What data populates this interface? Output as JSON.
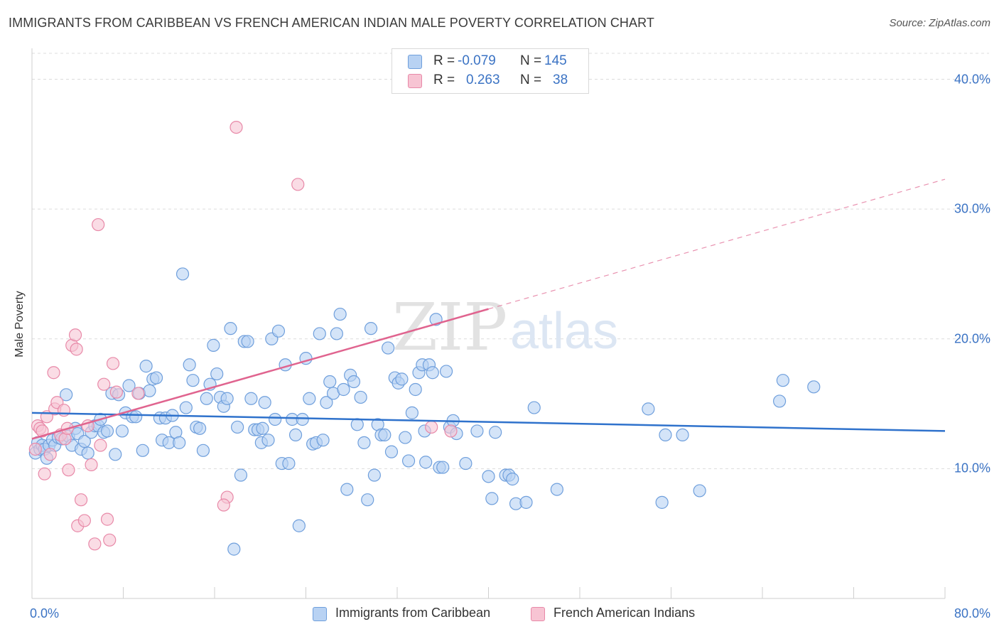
{
  "title": "IMMIGRANTS FROM CARIBBEAN VS FRENCH AMERICAN INDIAN MALE POVERTY CORRELATION CHART",
  "source": "Source: ZipAtlas.com",
  "watermark": {
    "zip": "ZIP",
    "atlas": "atlas"
  },
  "colors": {
    "blue_fill": "#b8d2f3",
    "blue_stroke": "#6f9fdc",
    "blue_line": "#2f72cc",
    "pink_fill": "#f7c4d3",
    "pink_stroke": "#e889a8",
    "pink_line": "#e0648f",
    "tick_text": "#3b73c4",
    "grid": "#dcdcdc"
  },
  "legend": {
    "rows": [
      {
        "r_label": "R =",
        "r_value": "-0.079",
        "n_label": "N =",
        "n_value": "145"
      },
      {
        "r_label": "R =",
        "r_value": "0.263",
        "n_label": "N =",
        "n_value": "38"
      }
    ]
  },
  "bottom_legend": [
    "Immigrants from Caribbean",
    "French American Indians"
  ],
  "chart_data": {
    "type": "scatter",
    "title": "IMMIGRANTS FROM CARIBBEAN VS FRENCH AMERICAN INDIAN MALE POVERTY CORRELATION CHART",
    "xlabel": "",
    "ylabel": "Male Poverty",
    "xlim": [
      0,
      80
    ],
    "ylim": [
      0,
      42
    ],
    "x_ticks": [
      "0.0%",
      "80.0%"
    ],
    "y_ticks": [
      {
        "value": 10,
        "label": "10.0%"
      },
      {
        "value": 20,
        "label": "20.0%"
      },
      {
        "value": 30,
        "label": "30.0%"
      },
      {
        "value": 40,
        "label": "40.0%"
      }
    ],
    "grid": "horizontal dashed",
    "legend_position": "top-center",
    "series": [
      {
        "name": "Immigrants from Caribbean",
        "r": -0.079,
        "n": 145,
        "trend": {
          "x": [
            0,
            80
          ],
          "y": [
            14.3,
            12.9
          ],
          "dashed_extension": false
        },
        "points": [
          [
            0.3,
            11.2
          ],
          [
            0.5,
            12.0
          ],
          [
            0.7,
            11.5
          ],
          [
            0.9,
            11.8
          ],
          [
            1.1,
            11.5
          ],
          [
            1.3,
            10.8
          ],
          [
            1.5,
            11.8
          ],
          [
            1.8,
            12.2
          ],
          [
            2.0,
            11.8
          ],
          [
            2.3,
            12.4
          ],
          [
            2.6,
            12.3
          ],
          [
            3.0,
            15.7
          ],
          [
            3.2,
            12.5
          ],
          [
            3.5,
            11.8
          ],
          [
            3.8,
            13.1
          ],
          [
            4.0,
            12.7
          ],
          [
            4.3,
            11.5
          ],
          [
            4.6,
            12.1
          ],
          [
            4.9,
            11.2
          ],
          [
            5.2,
            12.8
          ],
          [
            5.5,
            13.3
          ],
          [
            5.8,
            13.3
          ],
          [
            6.0,
            13.8
          ],
          [
            6.3,
            12.8
          ],
          [
            6.6,
            12.9
          ],
          [
            7.0,
            15.8
          ],
          [
            7.3,
            11.1
          ],
          [
            7.6,
            15.7
          ],
          [
            7.9,
            12.9
          ],
          [
            8.2,
            14.3
          ],
          [
            8.5,
            16.4
          ],
          [
            8.8,
            14.0
          ],
          [
            9.1,
            14.0
          ],
          [
            9.4,
            15.8
          ],
          [
            9.7,
            11.4
          ],
          [
            10.0,
            17.9
          ],
          [
            10.3,
            16.0
          ],
          [
            10.6,
            16.9
          ],
          [
            10.9,
            17.0
          ],
          [
            11.2,
            13.9
          ],
          [
            11.4,
            12.2
          ],
          [
            11.7,
            13.9
          ],
          [
            12.0,
            12.0
          ],
          [
            12.3,
            14.1
          ],
          [
            12.6,
            12.8
          ],
          [
            12.9,
            12.0
          ],
          [
            13.2,
            25.0
          ],
          [
            13.5,
            14.7
          ],
          [
            13.8,
            18.0
          ],
          [
            14.1,
            16.8
          ],
          [
            14.4,
            13.2
          ],
          [
            14.7,
            13.1
          ],
          [
            15.0,
            11.4
          ],
          [
            15.3,
            15.4
          ],
          [
            15.6,
            16.5
          ],
          [
            15.9,
            19.5
          ],
          [
            16.2,
            17.3
          ],
          [
            16.5,
            15.5
          ],
          [
            16.8,
            14.8
          ],
          [
            17.1,
            15.4
          ],
          [
            17.4,
            20.8
          ],
          [
            17.7,
            3.8
          ],
          [
            18.0,
            13.2
          ],
          [
            18.3,
            9.5
          ],
          [
            18.6,
            19.8
          ],
          [
            18.9,
            19.8
          ],
          [
            19.2,
            15.4
          ],
          [
            19.5,
            13.0
          ],
          [
            19.8,
            13.0
          ],
          [
            20.1,
            12.0
          ],
          [
            20.4,
            15.1
          ],
          [
            20.7,
            12.2
          ],
          [
            21.0,
            20.0
          ],
          [
            21.3,
            13.8
          ],
          [
            21.6,
            20.6
          ],
          [
            21.9,
            10.4
          ],
          [
            22.2,
            18.0
          ],
          [
            22.5,
            10.4
          ],
          [
            22.8,
            13.8
          ],
          [
            23.1,
            12.6
          ],
          [
            23.4,
            5.6
          ],
          [
            23.7,
            13.8
          ],
          [
            24.0,
            18.5
          ],
          [
            24.3,
            15.4
          ],
          [
            24.6,
            11.9
          ],
          [
            24.9,
            12.0
          ],
          [
            25.2,
            20.4
          ],
          [
            25.5,
            12.2
          ],
          [
            25.8,
            15.1
          ],
          [
            26.1,
            16.7
          ],
          [
            26.4,
            15.8
          ],
          [
            26.7,
            20.4
          ],
          [
            27.0,
            21.9
          ],
          [
            27.3,
            16.1
          ],
          [
            27.6,
            8.4
          ],
          [
            27.9,
            17.2
          ],
          [
            28.2,
            16.7
          ],
          [
            28.5,
            13.4
          ],
          [
            28.8,
            15.5
          ],
          [
            29.1,
            12.0
          ],
          [
            29.4,
            7.6
          ],
          [
            29.7,
            20.8
          ],
          [
            30.0,
            9.5
          ],
          [
            30.3,
            13.4
          ],
          [
            30.6,
            12.6
          ],
          [
            30.9,
            12.6
          ],
          [
            31.2,
            19.3
          ],
          [
            31.5,
            11.3
          ],
          [
            31.8,
            17.0
          ],
          [
            32.1,
            16.6
          ],
          [
            32.4,
            16.9
          ],
          [
            32.7,
            12.4
          ],
          [
            33.0,
            10.6
          ],
          [
            33.3,
            14.3
          ],
          [
            33.6,
            16.1
          ],
          [
            33.9,
            17.4
          ],
          [
            34.2,
            18.0
          ],
          [
            34.5,
            10.5
          ],
          [
            34.8,
            18.0
          ],
          [
            35.1,
            17.4
          ],
          [
            35.4,
            21.5
          ],
          [
            35.7,
            10.1
          ],
          [
            36.0,
            10.1
          ],
          [
            36.3,
            17.5
          ],
          [
            36.6,
            13.2
          ],
          [
            36.9,
            13.7
          ],
          [
            37.2,
            12.7
          ],
          [
            38.0,
            10.4
          ],
          [
            39.0,
            12.9
          ],
          [
            40.0,
            9.4
          ],
          [
            40.3,
            7.7
          ],
          [
            40.6,
            12.8
          ],
          [
            41.5,
            9.5
          ],
          [
            41.8,
            9.5
          ],
          [
            42.1,
            9.2
          ],
          [
            42.4,
            7.3
          ],
          [
            43.3,
            7.4
          ],
          [
            44.0,
            14.7
          ],
          [
            46.0,
            8.4
          ],
          [
            54.0,
            14.6
          ],
          [
            55.2,
            7.4
          ],
          [
            55.5,
            12.6
          ],
          [
            57.0,
            12.6
          ],
          [
            58.5,
            8.3
          ],
          [
            65.5,
            15.2
          ],
          [
            65.8,
            16.8
          ],
          [
            68.5,
            16.3
          ],
          [
            34.4,
            12.9
          ],
          [
            20.2,
            13.1
          ]
        ]
      },
      {
        "name": "French American Indians",
        "r": 0.263,
        "n": 38,
        "trend": {
          "x": [
            0,
            40
          ],
          "y": [
            12.3,
            22.3
          ],
          "dashed_extension": {
            "x": [
              40,
              80
            ],
            "y": [
              22.3,
              32.3
            ]
          }
        },
        "points": [
          [
            0.3,
            11.5
          ],
          [
            0.5,
            13.3
          ],
          [
            0.7,
            13.1
          ],
          [
            0.9,
            12.9
          ],
          [
            1.1,
            9.6
          ],
          [
            1.3,
            14.0
          ],
          [
            1.6,
            11.1
          ],
          [
            1.9,
            17.4
          ],
          [
            2.0,
            14.6
          ],
          [
            2.2,
            15.1
          ],
          [
            2.5,
            12.6
          ],
          [
            2.8,
            14.5
          ],
          [
            2.9,
            12.3
          ],
          [
            3.1,
            13.1
          ],
          [
            3.2,
            9.9
          ],
          [
            3.5,
            19.5
          ],
          [
            3.8,
            20.3
          ],
          [
            3.9,
            19.2
          ],
          [
            4.0,
            5.6
          ],
          [
            4.3,
            7.6
          ],
          [
            4.6,
            6.0
          ],
          [
            4.9,
            13.3
          ],
          [
            5.2,
            10.3
          ],
          [
            5.5,
            4.2
          ],
          [
            5.8,
            28.8
          ],
          [
            6.0,
            11.8
          ],
          [
            6.3,
            16.5
          ],
          [
            6.6,
            6.1
          ],
          [
            6.8,
            4.5
          ],
          [
            7.1,
            18.1
          ],
          [
            7.4,
            15.9
          ],
          [
            9.3,
            15.8
          ],
          [
            17.1,
            7.8
          ],
          [
            16.8,
            7.2
          ],
          [
            17.9,
            36.3
          ],
          [
            23.3,
            31.9
          ],
          [
            35.0,
            13.2
          ],
          [
            36.7,
            12.9
          ]
        ]
      }
    ]
  }
}
